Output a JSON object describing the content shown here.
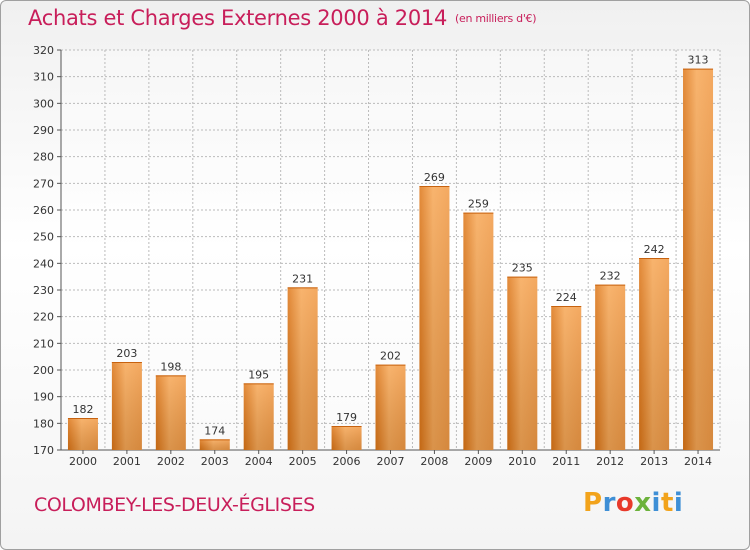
{
  "title": "Achats et Charges Externes 2000 à 2014",
  "unit": "(en milliers d'€)",
  "location": "COLOMBEY-LES-DEUX-ÉGLISES",
  "logo": {
    "letters": [
      "P",
      "r",
      "o",
      "x",
      "i",
      "t",
      "i"
    ],
    "colors": [
      "#f2a31b",
      "#3e8fd6",
      "#e8392a",
      "#6cb23b",
      "#3e8fd6",
      "#f2a31b",
      "#3e8fd6"
    ]
  },
  "colors": {
    "bar_light": "#f7a755",
    "bar_dark": "#dd7516",
    "title": "#c81e5a",
    "grid": "#bbbbbb"
  },
  "chart_data": {
    "type": "bar",
    "title": "Achats et Charges Externes 2000 à 2014",
    "xlabel": "",
    "ylabel": "",
    "categories": [
      "2000",
      "2001",
      "2002",
      "2003",
      "2004",
      "2005",
      "2006",
      "2007",
      "2008",
      "2009",
      "2010",
      "2011",
      "2012",
      "2013",
      "2014"
    ],
    "values": [
      182,
      203,
      198,
      174,
      195,
      231,
      179,
      202,
      269,
      259,
      235,
      224,
      232,
      242,
      313
    ],
    "ylim": [
      170,
      320
    ],
    "yticks": [
      170,
      180,
      190,
      200,
      210,
      220,
      230,
      240,
      250,
      260,
      270,
      280,
      290,
      300,
      310,
      320
    ],
    "grid": true,
    "data_labels": true
  }
}
